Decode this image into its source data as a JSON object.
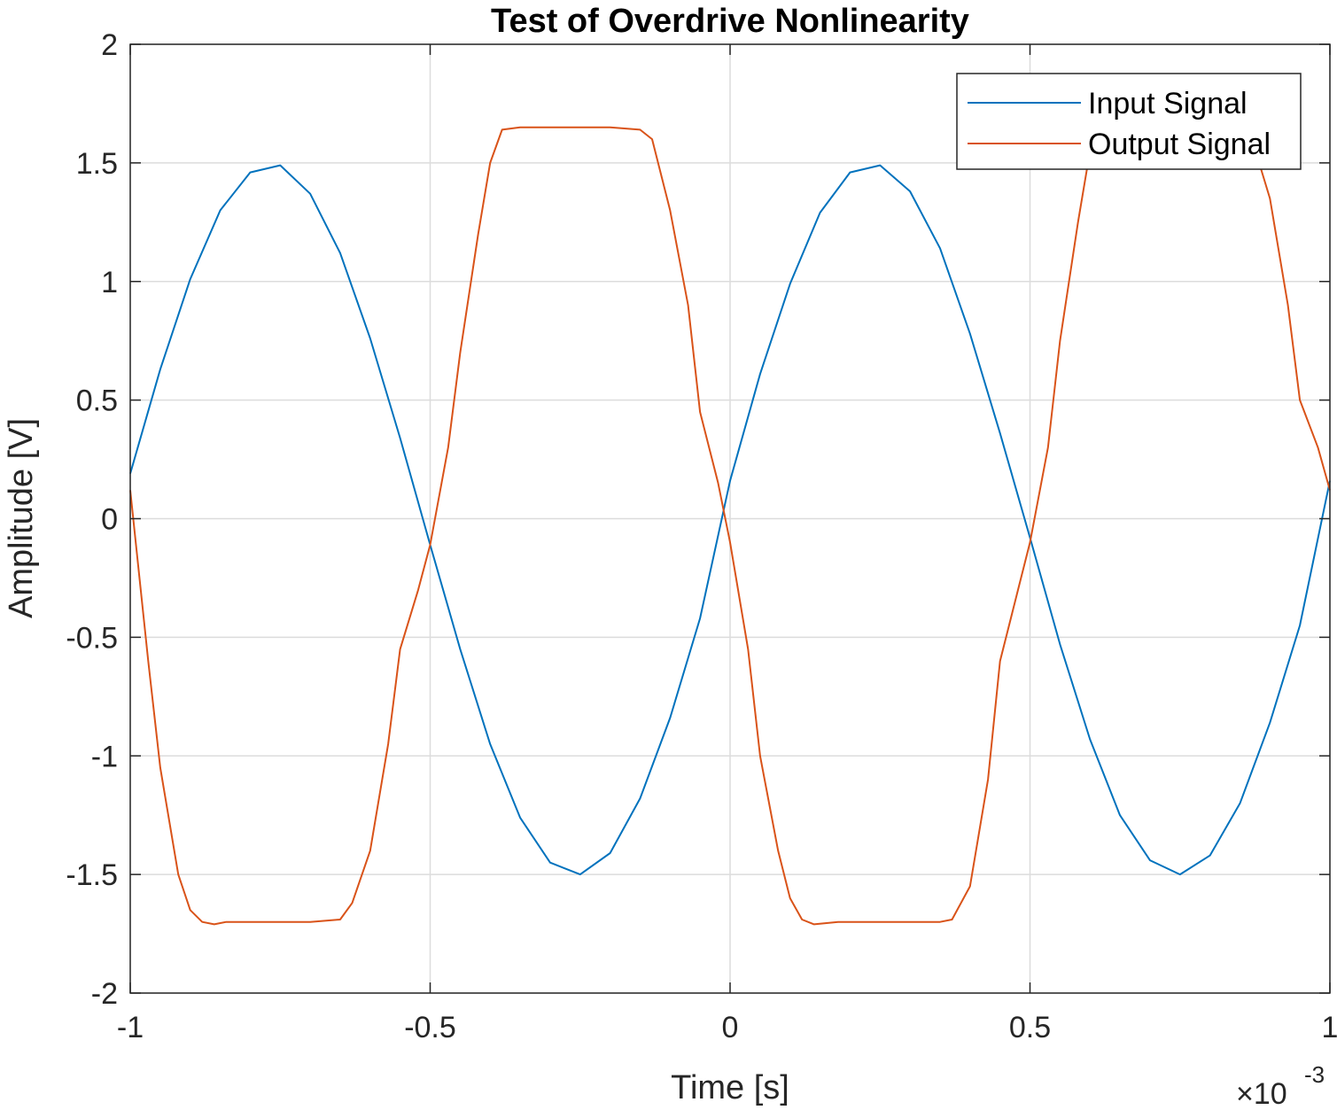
{
  "chart_data": {
    "type": "line",
    "title": "Test of Overdrive Nonlinearity",
    "xlabel": "Time [s]",
    "ylabel": "Amplitude [V]",
    "x_exponent": {
      "base": "×10",
      "power": "-3"
    },
    "xlim": [
      -1,
      1
    ],
    "ylim": [
      -2,
      2
    ],
    "x_ticks": [
      -1,
      -0.5,
      0,
      0.5,
      1
    ],
    "x_tick_labels": [
      "-1",
      "-0.5",
      "0",
      "0.5",
      "1"
    ],
    "y_ticks": [
      -2,
      -1.5,
      -1,
      -0.5,
      0,
      0.5,
      1,
      1.5,
      2
    ],
    "y_tick_labels": [
      "-2",
      "-1.5",
      "-1",
      "-0.5",
      "0",
      "0.5",
      "1",
      "1.5",
      "2"
    ],
    "grid": true,
    "legend_position": "top-right",
    "colors": {
      "input": "#0072BD",
      "output": "#D95319",
      "grid": "#dcdcdc",
      "axis": "#262626"
    },
    "series": [
      {
        "name": "Input Signal",
        "color": "#0072BD",
        "x": [
          -1.0,
          -0.95,
          -0.9,
          -0.85,
          -0.8,
          -0.75,
          -0.7,
          -0.65,
          -0.6,
          -0.55,
          -0.5,
          -0.45,
          -0.4,
          -0.35,
          -0.3,
          -0.25,
          -0.2,
          -0.15,
          -0.1,
          -0.05,
          0.0,
          0.05,
          0.1,
          0.15,
          0.2,
          0.25,
          0.3,
          0.35,
          0.4,
          0.45,
          0.5,
          0.55,
          0.6,
          0.65,
          0.7,
          0.75,
          0.8,
          0.85,
          0.9,
          0.95,
          1.0
        ],
        "y": [
          0.19,
          0.63,
          1.01,
          1.3,
          1.46,
          1.49,
          1.37,
          1.12,
          0.76,
          0.34,
          -0.11,
          -0.55,
          -0.95,
          -1.26,
          -1.45,
          -1.5,
          -1.41,
          -1.18,
          -0.84,
          -0.42,
          0.16,
          0.61,
          0.99,
          1.29,
          1.46,
          1.49,
          1.38,
          1.14,
          0.78,
          0.36,
          -0.08,
          -0.53,
          -0.93,
          -1.25,
          -1.44,
          -1.5,
          -1.42,
          -1.2,
          -0.86,
          -0.45,
          0.16
        ]
      },
      {
        "name": "Output Signal",
        "color": "#D95319",
        "x": [
          -1.0,
          -0.97,
          -0.95,
          -0.92,
          -0.9,
          -0.88,
          -0.86,
          -0.84,
          -0.8,
          -0.75,
          -0.7,
          -0.65,
          -0.63,
          -0.6,
          -0.57,
          -0.55,
          -0.52,
          -0.5,
          -0.47,
          -0.45,
          -0.42,
          -0.4,
          -0.38,
          -0.35,
          -0.3,
          -0.25,
          -0.2,
          -0.15,
          -0.13,
          -0.1,
          -0.07,
          -0.05,
          -0.02,
          0.0,
          0.03,
          0.05,
          0.08,
          0.1,
          0.12,
          0.14,
          0.18,
          0.25,
          0.3,
          0.35,
          0.37,
          0.4,
          0.43,
          0.45,
          0.48,
          0.5,
          0.53,
          0.55,
          0.58,
          0.6,
          0.62,
          0.65,
          0.7,
          0.75,
          0.8,
          0.85,
          0.87,
          0.9,
          0.93,
          0.95,
          0.98,
          1.0
        ],
        "y": [
          0.12,
          -0.6,
          -1.05,
          -1.5,
          -1.65,
          -1.7,
          -1.71,
          -1.7,
          -1.7,
          -1.7,
          -1.7,
          -1.69,
          -1.62,
          -1.4,
          -0.95,
          -0.55,
          -0.3,
          -0.11,
          0.3,
          0.7,
          1.2,
          1.5,
          1.64,
          1.65,
          1.65,
          1.65,
          1.65,
          1.64,
          1.6,
          1.3,
          0.9,
          0.45,
          0.15,
          -0.1,
          -0.55,
          -1.0,
          -1.4,
          -1.6,
          -1.69,
          -1.71,
          -1.7,
          -1.7,
          -1.7,
          -1.7,
          -1.69,
          -1.55,
          -1.1,
          -0.6,
          -0.3,
          -0.1,
          0.3,
          0.75,
          1.25,
          1.55,
          1.64,
          1.65,
          1.65,
          1.65,
          1.65,
          1.64,
          1.6,
          1.35,
          0.9,
          0.5,
          0.3,
          0.12
        ]
      }
    ]
  }
}
